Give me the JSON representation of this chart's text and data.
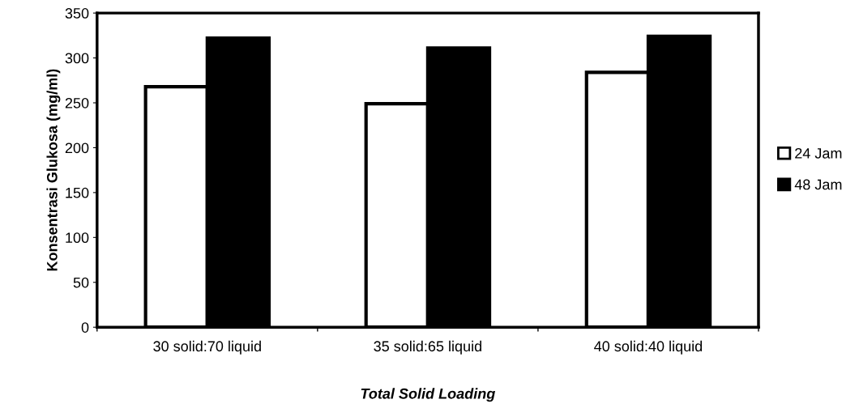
{
  "chart_data": {
    "type": "bar",
    "xlabel": "Total Solid Loading",
    "ylabel": "Konsentrasi Glukosa (mg/ml)",
    "categories": [
      "30 solid:70 liquid",
      "35 solid:65 liquid",
      "40 solid:40 liquid"
    ],
    "series": [
      {
        "name": "24 Jam",
        "color": "#ffffff",
        "values": [
          268,
          249,
          284
        ]
      },
      {
        "name": "48 Jam",
        "color": "#000000",
        "values": [
          322,
          311,
          324
        ]
      }
    ],
    "ylim": [
      0,
      350
    ],
    "yticks": [
      0,
      50,
      100,
      150,
      200,
      250,
      300,
      350
    ],
    "grid": false,
    "legend": "right"
  }
}
